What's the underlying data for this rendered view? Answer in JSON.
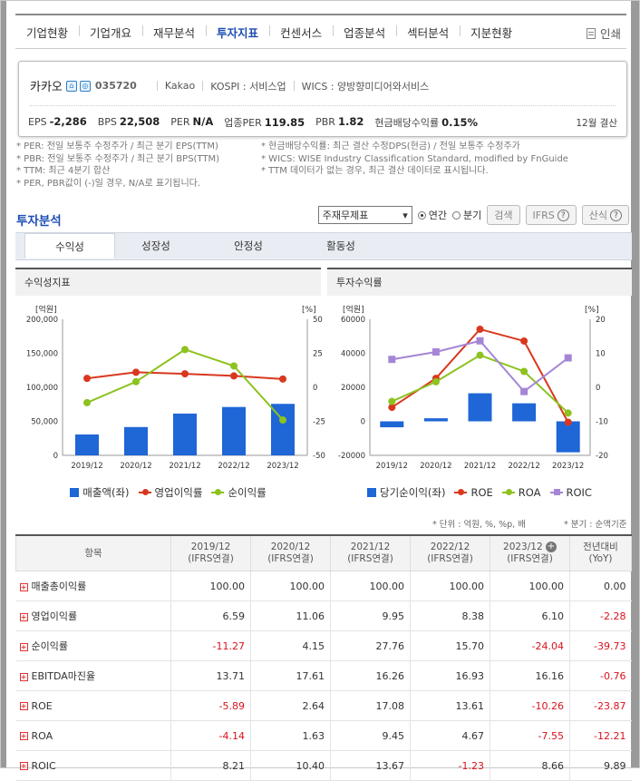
{
  "nav": {
    "items": [
      "기업현황",
      "기업개요",
      "재무분석",
      "투자지표",
      "컨센서스",
      "업종분석",
      "섹터분석",
      "지분현황"
    ],
    "active_index": 3,
    "print_label": "인쇄"
  },
  "company": {
    "name": "카카오",
    "code": "035720",
    "eng_name": "Kakao",
    "market": "KOSPI : 서비스업",
    "wics": "WICS : 양방향미디어와서비스",
    "metrics": [
      {
        "label": "EPS",
        "value": "-2,286"
      },
      {
        "label": "BPS",
        "value": "22,508"
      },
      {
        "label": "PER",
        "value": "N/A"
      },
      {
        "label": "업종PER",
        "value": "119.85"
      },
      {
        "label": "PBR",
        "value": "1.82"
      },
      {
        "label": "현금배당수익률",
        "value": "0.15%"
      }
    ],
    "settlement": "12월 결산"
  },
  "notes": {
    "left": [
      "* PER: 전일 보통주 수정주가 / 최근 분기 EPS(TTM)",
      "* PBR: 전일 보통주 수정주가 / 최근 분기 BPS(TTM)",
      "* TTM: 최근 4분기 합산",
      "* PER, PBR값이 (-)일 경우, N/A로 표기됩니다."
    ],
    "right": [
      "* 현금배당수익률: 최근 결산 수정DPS(현금) / 전일 보통주 수정주가",
      "* WICS: WISE Industry Classification Standard, modified by FnGuide",
      "* TTM 데이터가 없는 경우, 최근 결산 데이터로 표시됩니다."
    ]
  },
  "section": {
    "title": "투자분석",
    "select_value": "주재무제표",
    "radio_annual": "연간",
    "radio_quarter": "분기",
    "search_label": "검색",
    "ifrs_label": "IFRS",
    "calc_label": "산식"
  },
  "tabs": [
    "수익성",
    "성장성",
    "안정성",
    "활동성"
  ],
  "left_chart_title": "수익성지표",
  "right_chart_title": "투자수익률",
  "chart_data": [
    {
      "type": "bar",
      "title": "수익성지표",
      "categories": [
        "2019/12",
        "2020/12",
        "2021/12",
        "2022/12",
        "2023/12"
      ],
      "y_left_unit": "[억원]",
      "y_right_unit": "[%]",
      "ylim_left": [
        0,
        200000
      ],
      "ylim_right": [
        -50,
        50
      ],
      "left_ticks": [
        "200,000",
        "150,000",
        "100,000",
        "50,000",
        "0"
      ],
      "right_ticks": [
        "50",
        "25",
        "0",
        "-25",
        "-50"
      ],
      "series": [
        {
          "name": "매출액(좌)",
          "kind": "bar",
          "axis": "left",
          "color": "#1f66d6",
          "values": [
            30700,
            41600,
            61400,
            71100,
            75700
          ]
        },
        {
          "name": "영업이익률",
          "kind": "line",
          "axis": "right",
          "color": "#d9381e",
          "values": [
            6.59,
            11.06,
            9.95,
            8.38,
            6.1
          ]
        },
        {
          "name": "순이익률",
          "kind": "line",
          "axis": "right",
          "color": "#8dc21f",
          "values": [
            -11.27,
            4.15,
            27.76,
            15.7,
            -24.04
          ]
        }
      ],
      "grid": false,
      "legend": "bottom"
    },
    {
      "type": "bar",
      "title": "투자수익률",
      "categories": [
        "2019/12",
        "2020/12",
        "2021/12",
        "2022/12",
        "2023/12"
      ],
      "y_left_unit": "[억원]",
      "y_right_unit": "[%]",
      "ylim_left": [
        -20000,
        60000
      ],
      "ylim_right": [
        -20,
        20
      ],
      "left_ticks": [
        "60000",
        "40000",
        "20000",
        "0",
        "-20000"
      ],
      "right_ticks": [
        "20",
        "10",
        "0",
        "-10",
        "-20"
      ],
      "series": [
        {
          "name": "당기순이익(좌)",
          "kind": "bar",
          "axis": "left",
          "color": "#1f66d6",
          "values": [
            -3500,
            1800,
            16500,
            10600,
            -18200
          ]
        },
        {
          "name": "ROE",
          "kind": "line",
          "axis": "right",
          "color": "#d9381e",
          "values": [
            -5.89,
            2.64,
            17.08,
            13.61,
            -10.26
          ]
        },
        {
          "name": "ROA",
          "kind": "line",
          "axis": "right",
          "color": "#8dc21f",
          "values": [
            -4.14,
            1.63,
            9.45,
            4.67,
            -7.55
          ]
        },
        {
          "name": "ROIC",
          "kind": "line",
          "axis": "right",
          "color": "#a586d6",
          "marker": "square",
          "values": [
            8.21,
            10.4,
            13.67,
            -1.23,
            8.66
          ]
        }
      ],
      "grid": false,
      "legend": "bottom"
    }
  ],
  "units_left": "* 단위 : 억원, %, %p, 배",
  "units_right": "* 분기 : 순액기준",
  "table": {
    "header_item": "항목",
    "columns": [
      {
        "year": "2019/12",
        "sub": "(IFRS연결)"
      },
      {
        "year": "2020/12",
        "sub": "(IFRS연결)"
      },
      {
        "year": "2021/12",
        "sub": "(IFRS연결)"
      },
      {
        "year": "2022/12",
        "sub": "(IFRS연결)"
      },
      {
        "year": "2023/12",
        "sub": "(IFRS연결)"
      }
    ],
    "yoy_header": "전년대비",
    "yoy_sub": "(YoY)",
    "rows": [
      {
        "label": "매출총이익률",
        "values": [
          "100.00",
          "100.00",
          "100.00",
          "100.00",
          "100.00",
          "0.00"
        ]
      },
      {
        "label": "영업이익률",
        "values": [
          "6.59",
          "11.06",
          "9.95",
          "8.38",
          "6.10",
          "-2.28"
        ]
      },
      {
        "label": "순이익률",
        "values": [
          "-11.27",
          "4.15",
          "27.76",
          "15.70",
          "-24.04",
          "-39.73"
        ]
      },
      {
        "label": "EBITDA마진율",
        "values": [
          "13.71",
          "17.61",
          "16.26",
          "16.93",
          "16.16",
          "-0.76"
        ]
      },
      {
        "label": "ROE",
        "values": [
          "-5.89",
          "2.64",
          "17.08",
          "13.61",
          "-10.26",
          "-23.87"
        ]
      },
      {
        "label": "ROA",
        "values": [
          "-4.14",
          "1.63",
          "9.45",
          "4.67",
          "-7.55",
          "-12.21"
        ]
      },
      {
        "label": "ROIC",
        "values": [
          "8.21",
          "10.40",
          "13.67",
          "-1.23",
          "8.66",
          "9.89"
        ]
      }
    ]
  }
}
